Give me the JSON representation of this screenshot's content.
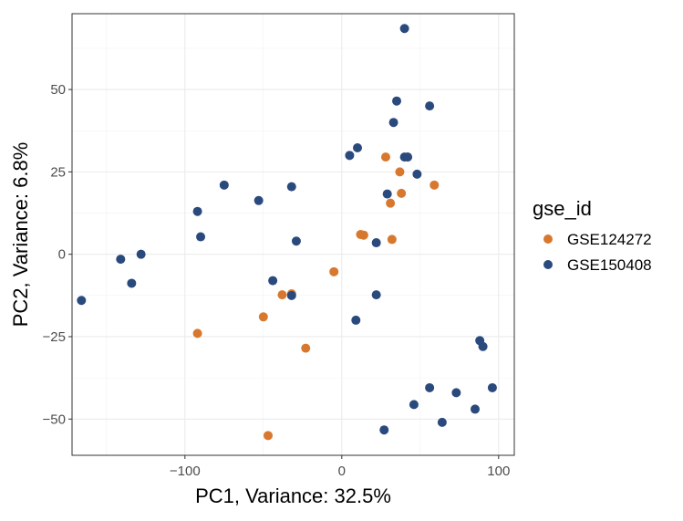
{
  "chart_data": {
    "type": "scatter",
    "title": "",
    "xlabel": "PC1, Variance: 32.5%",
    "ylabel": "PC2, Variance: 6.8%",
    "xlim": [
      -172,
      110
    ],
    "ylim": [
      -61,
      73
    ],
    "x_ticks": [
      -100,
      0,
      100
    ],
    "x_tick_labels": [
      "−100",
      "0",
      "100"
    ],
    "y_ticks": [
      50,
      25,
      0,
      -25,
      -50
    ],
    "y_tick_labels": [
      "50",
      "25",
      "0",
      "−25",
      "−50"
    ],
    "grid": true,
    "legend": {
      "title": "gse_id",
      "position": "right"
    },
    "series": [
      {
        "name": "GSE124272",
        "color": "#d8782f",
        "points": [
          [
            28,
            29.5
          ],
          [
            37,
            25
          ],
          [
            42,
            29.5
          ],
          [
            59,
            21
          ],
          [
            38,
            18.5
          ],
          [
            31,
            15.5
          ],
          [
            12,
            6
          ],
          [
            14,
            5.8
          ],
          [
            32,
            4.5
          ],
          [
            -5,
            -5.3
          ],
          [
            -32,
            -12
          ],
          [
            -38,
            -12.3
          ],
          [
            -50,
            -19
          ],
          [
            -92,
            -24
          ],
          [
            -23,
            -28.5
          ],
          [
            -47,
            -55
          ]
        ]
      },
      {
        "name": "GSE150408",
        "color": "#2a4a7e",
        "points": [
          [
            40,
            68.5
          ],
          [
            35,
            46.5
          ],
          [
            56,
            45
          ],
          [
            33,
            40
          ],
          [
            5,
            30
          ],
          [
            10,
            32.3
          ],
          [
            40,
            29.5
          ],
          [
            42,
            29.5
          ],
          [
            48,
            24.3
          ],
          [
            29,
            18.3
          ],
          [
            -75,
            21
          ],
          [
            -32,
            20.5
          ],
          [
            -53,
            16.3
          ],
          [
            -92,
            13
          ],
          [
            -90,
            5.3
          ],
          [
            -29,
            4
          ],
          [
            22,
            3.5
          ],
          [
            -128,
            0
          ],
          [
            -141,
            -1.5
          ],
          [
            -134,
            -8.8
          ],
          [
            -166,
            -14
          ],
          [
            -44,
            -8
          ],
          [
            -32,
            -12.5
          ],
          [
            22,
            -12.3
          ],
          [
            9,
            -20
          ],
          [
            88,
            -26.2
          ],
          [
            90,
            -28
          ],
          [
            56,
            -40.5
          ],
          [
            73,
            -42
          ],
          [
            96,
            -40.5
          ],
          [
            46,
            -45.6
          ],
          [
            85,
            -47
          ],
          [
            64,
            -51
          ],
          [
            27,
            -53.3
          ]
        ]
      }
    ]
  }
}
